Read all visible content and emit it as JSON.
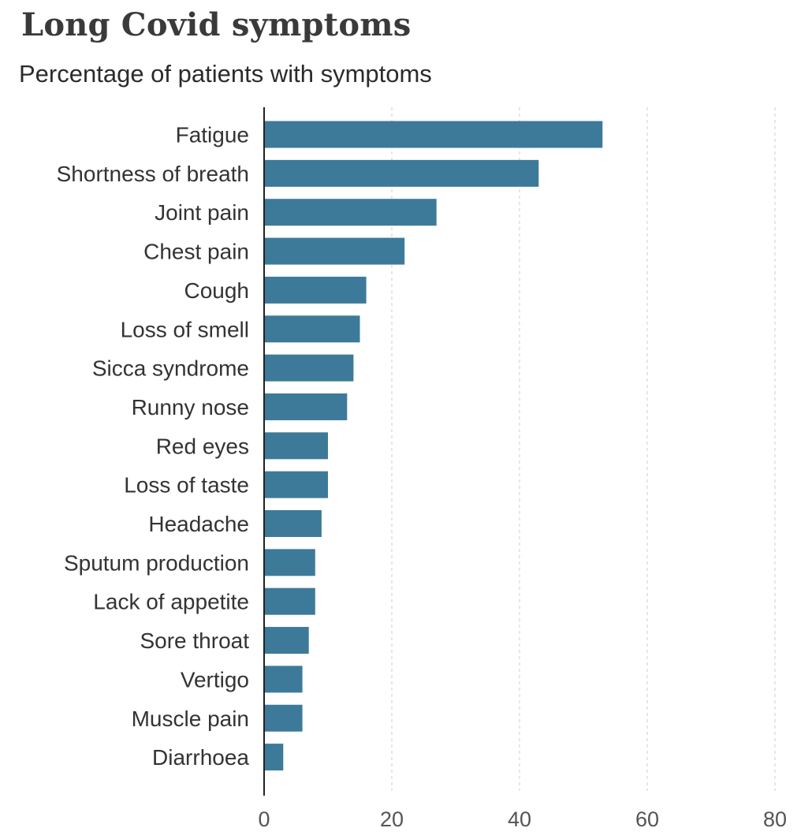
{
  "title": "Long Covid symptoms",
  "subtitle": "Percentage of patients with symptoms",
  "colors": {
    "bar": "#3d7a99",
    "axis": "#222222",
    "grid": "#cccccc",
    "label": "#333333",
    "tick": "#555555"
  },
  "chart_data": {
    "type": "bar",
    "orientation": "horizontal",
    "title": "Long Covid symptoms",
    "subtitle": "Percentage of patients with symptoms",
    "categories": [
      "Fatigue",
      "Shortness of breath",
      "Joint pain",
      "Chest pain",
      "Cough",
      "Loss of smell",
      "Sicca syndrome",
      "Runny nose",
      "Red eyes",
      "Loss of taste",
      "Headache",
      "Sputum production",
      "Lack of appetite",
      "Sore throat",
      "Vertigo",
      "Muscle pain",
      "Diarrhoea"
    ],
    "values": [
      53,
      43,
      27,
      22,
      16,
      15,
      14,
      13,
      10,
      10,
      9,
      8,
      8,
      7,
      6,
      6,
      3
    ],
    "xlim": [
      0,
      80
    ],
    "xticks": [
      "0",
      "20",
      "40",
      "60",
      "80"
    ],
    "grid": true
  }
}
